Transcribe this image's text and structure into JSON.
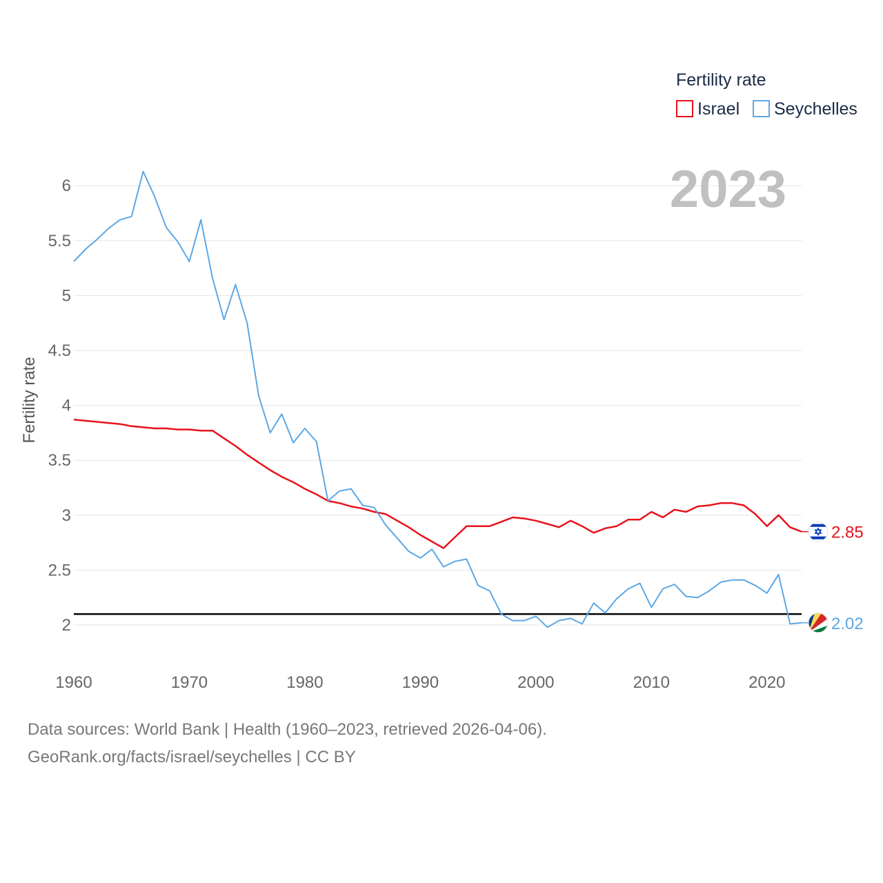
{
  "chart_data": {
    "type": "line",
    "ylabel": "Fertility rate",
    "legend_title": "Fertility rate",
    "legend_position": "top-right",
    "year_display": "2023",
    "xlim": [
      1960,
      2023
    ],
    "ylim": [
      1.8,
      6.2
    ],
    "x_ticks": [
      1960,
      1970,
      1980,
      1990,
      2000,
      2010,
      2020
    ],
    "y_ticks": [
      2,
      2.5,
      3,
      3.5,
      4,
      4.5,
      5,
      5.5,
      6
    ],
    "x_tick_labels": [
      "1960",
      "1970",
      "1980",
      "1990",
      "2000",
      "2010",
      "2020"
    ],
    "y_tick_labels": [
      "2",
      "2.5",
      "3",
      "3.5",
      "4",
      "4.5",
      "5",
      "5.5",
      "6"
    ],
    "reference_line": 2.1,
    "grid": true,
    "x": [
      1960,
      1961,
      1962,
      1963,
      1964,
      1965,
      1966,
      1967,
      1968,
      1969,
      1970,
      1971,
      1972,
      1973,
      1974,
      1975,
      1976,
      1977,
      1978,
      1979,
      1980,
      1981,
      1982,
      1983,
      1984,
      1985,
      1986,
      1987,
      1988,
      1989,
      1990,
      1991,
      1992,
      1993,
      1994,
      1995,
      1996,
      1997,
      1998,
      1999,
      2000,
      2001,
      2002,
      2003,
      2004,
      2005,
      2006,
      2007,
      2008,
      2009,
      2010,
      2011,
      2012,
      2013,
      2014,
      2015,
      2016,
      2017,
      2018,
      2019,
      2020,
      2021,
      2022,
      2023
    ],
    "series": [
      {
        "name": "Israel",
        "color": "#e8111b",
        "end_label": "2.85",
        "values": [
          3.87,
          3.86,
          3.85,
          3.84,
          3.83,
          3.81,
          3.8,
          3.79,
          3.79,
          3.78,
          3.78,
          3.77,
          3.77,
          3.7,
          3.63,
          3.55,
          3.48,
          3.41,
          3.35,
          3.3,
          3.24,
          3.19,
          3.13,
          3.11,
          3.08,
          3.06,
          3.03,
          3.01,
          2.95,
          2.89,
          2.82,
          2.76,
          2.7,
          2.8,
          2.9,
          2.9,
          2.9,
          2.94,
          2.98,
          2.97,
          2.95,
          2.92,
          2.89,
          2.95,
          2.9,
          2.84,
          2.88,
          2.9,
          2.96,
          2.96,
          3.03,
          2.98,
          3.05,
          3.03,
          3.08,
          3.09,
          3.11,
          3.11,
          3.09,
          3.01,
          2.9,
          3.0,
          2.89,
          2.85
        ]
      },
      {
        "name": "Seychelles",
        "color": "#5ba7e5",
        "end_label": "2.02",
        "values": [
          5.31,
          5.42,
          5.51,
          5.61,
          5.69,
          5.72,
          6.13,
          5.9,
          5.62,
          5.49,
          5.31,
          5.69,
          5.16,
          4.78,
          5.1,
          4.75,
          4.09,
          3.75,
          3.92,
          3.66,
          3.79,
          3.67,
          3.13,
          3.22,
          3.24,
          3.09,
          3.07,
          2.91,
          2.79,
          2.67,
          2.61,
          2.69,
          2.53,
          2.58,
          2.6,
          2.36,
          2.31,
          2.1,
          2.04,
          2.04,
          2.08,
          1.98,
          2.04,
          2.06,
          2.01,
          2.2,
          2.11,
          2.24,
          2.33,
          2.38,
          2.16,
          2.33,
          2.37,
          2.26,
          2.25,
          2.31,
          2.39,
          2.41,
          2.41,
          2.36,
          2.29,
          2.46,
          2.01,
          2.02
        ]
      }
    ]
  },
  "footer": {
    "line1": "Data sources: World Bank | Health (1960–2023, retrieved 2026-04-06).",
    "line2": "GeoRank.org/facts/israel/seychelles | CC BY"
  }
}
